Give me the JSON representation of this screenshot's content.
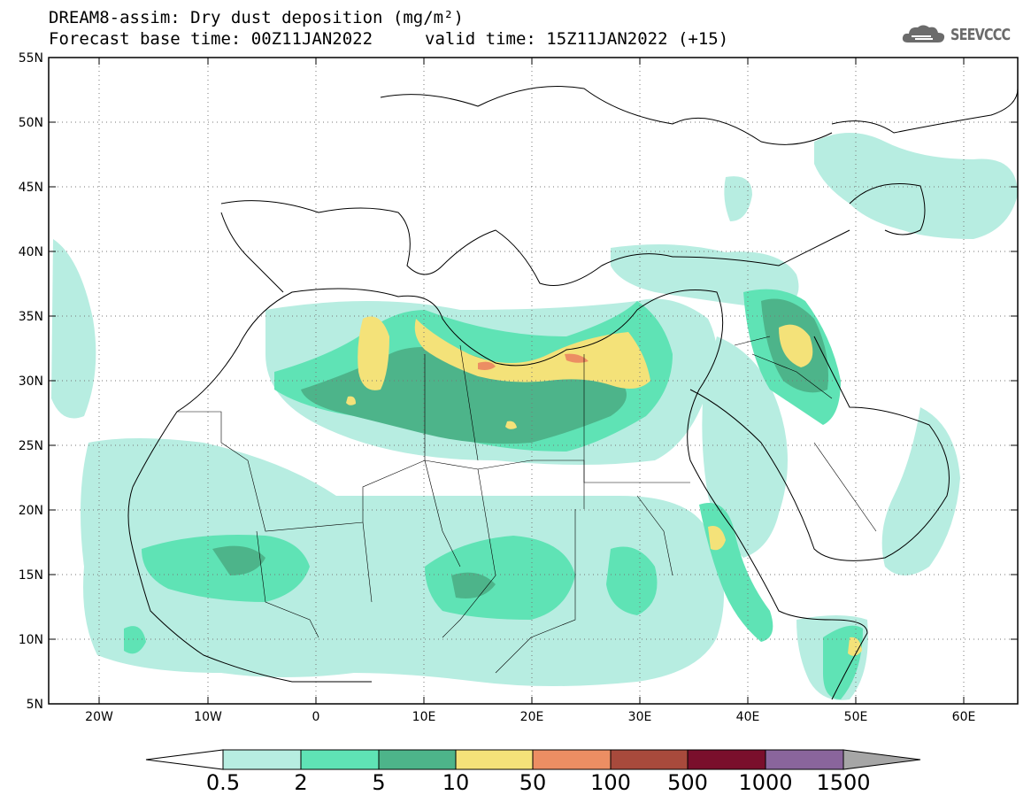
{
  "header": {
    "line1": "DREAM8-assim: Dry dust deposition (mg/m²)",
    "line2_left": "Forecast base time: 00Z11JAN2022",
    "line2_right": "valid time: 15Z11JAN2022 (+15)"
  },
  "logo": {
    "text": "SEEVCCC",
    "icon": "cloud-logo-icon"
  },
  "axes": {
    "lat_ticks": [
      "55N",
      "50N",
      "45N",
      "40N",
      "35N",
      "30N",
      "25N",
      "20N",
      "15N",
      "10N",
      "5N"
    ],
    "lon_ticks": [
      "20W",
      "10W",
      "0",
      "10E",
      "20E",
      "30E",
      "40E",
      "50E",
      "60E"
    ]
  },
  "colorbar": {
    "labels": [
      "0.5",
      "2",
      "5",
      "10",
      "50",
      "100",
      "500",
      "1000",
      "1500"
    ],
    "colors": [
      "#b7ede1",
      "#5fe3b5",
      "#4db48a",
      "#f4e279",
      "#ec8e63",
      "#a84a3c",
      "#7a0f2c",
      "#8a659c",
      "#a6a6a6"
    ]
  }
}
